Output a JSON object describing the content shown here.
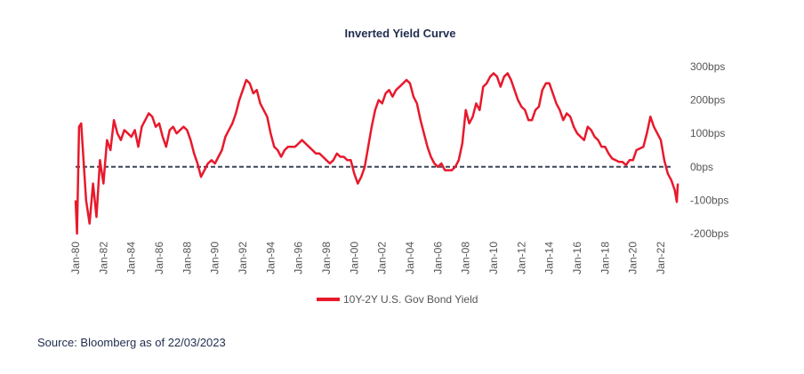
{
  "chart_data": {
    "type": "line",
    "title": "Inverted Yield Curve",
    "source": "Source: Bloomberg as of 22/03/2023",
    "ylim": [
      -200,
      300
    ],
    "yticks": [
      {
        "value": -200,
        "label": "-200bps"
      },
      {
        "value": -100,
        "label": "-100bps"
      },
      {
        "value": 0,
        "label": "0bps"
      },
      {
        "value": 100,
        "label": "100bps"
      },
      {
        "value": 200,
        "label": "200bps"
      },
      {
        "value": 300,
        "label": "300bps"
      }
    ],
    "xticks": [
      {
        "value": 1980,
        "label": "Jan-80"
      },
      {
        "value": 1982,
        "label": "Jan-82"
      },
      {
        "value": 1984,
        "label": "Jan-84"
      },
      {
        "value": 1986,
        "label": "Jan-86"
      },
      {
        "value": 1988,
        "label": "Jan-88"
      },
      {
        "value": 1990,
        "label": "Jan-90"
      },
      {
        "value": 1992,
        "label": "Jan-92"
      },
      {
        "value": 1994,
        "label": "Jan-94"
      },
      {
        "value": 1996,
        "label": "Jan-96"
      },
      {
        "value": 1998,
        "label": "Jan-98"
      },
      {
        "value": 2000,
        "label": "Jan-00"
      },
      {
        "value": 2002,
        "label": "Jan-02"
      },
      {
        "value": 2004,
        "label": "Jan-04"
      },
      {
        "value": 2006,
        "label": "Jan-06"
      },
      {
        "value": 2008,
        "label": "Jan-08"
      },
      {
        "value": 2010,
        "label": "Jan-10"
      },
      {
        "value": 2012,
        "label": "Jan-12"
      },
      {
        "value": 2014,
        "label": "Jan-14"
      },
      {
        "value": 2016,
        "label": "Jan-16"
      },
      {
        "value": 2018,
        "label": "Jan-18"
      },
      {
        "value": 2020,
        "label": "Jan-20"
      },
      {
        "value": 2022,
        "label": "Jan-22"
      }
    ],
    "x": [
      1980.0,
      1980.1,
      1980.25,
      1980.4,
      1980.6,
      1980.75,
      1981.0,
      1981.25,
      1981.5,
      1981.75,
      1982.0,
      1982.25,
      1982.5,
      1982.75,
      1983.0,
      1983.25,
      1983.5,
      1983.75,
      1984.0,
      1984.25,
      1984.5,
      1984.75,
      1985.0,
      1985.25,
      1985.5,
      1985.75,
      1986.0,
      1986.25,
      1986.5,
      1986.75,
      1987.0,
      1987.25,
      1987.5,
      1987.75,
      1988.0,
      1988.25,
      1988.5,
      1988.75,
      1989.0,
      1989.25,
      1989.5,
      1989.75,
      1990.0,
      1990.25,
      1990.5,
      1990.75,
      1991.0,
      1991.25,
      1991.5,
      1991.75,
      1992.0,
      1992.25,
      1992.5,
      1992.75,
      1993.0,
      1993.25,
      1993.5,
      1993.75,
      1994.0,
      1994.25,
      1994.5,
      1994.75,
      1995.0,
      1995.25,
      1995.5,
      1995.75,
      1996.0,
      1996.25,
      1996.5,
      1996.75,
      1997.0,
      1997.25,
      1997.5,
      1997.75,
      1998.0,
      1998.25,
      1998.5,
      1998.75,
      1999.0,
      1999.25,
      1999.5,
      1999.75,
      2000.0,
      2000.25,
      2000.5,
      2000.75,
      2001.0,
      2001.25,
      2001.5,
      2001.75,
      2002.0,
      2002.25,
      2002.5,
      2002.75,
      2003.0,
      2003.25,
      2003.5,
      2003.75,
      2004.0,
      2004.25,
      2004.5,
      2004.75,
      2005.0,
      2005.25,
      2005.5,
      2005.75,
      2006.0,
      2006.25,
      2006.5,
      2006.75,
      2007.0,
      2007.25,
      2007.5,
      2007.75,
      2008.0,
      2008.25,
      2008.5,
      2008.75,
      2009.0,
      2009.25,
      2009.5,
      2009.75,
      2010.0,
      2010.25,
      2010.5,
      2010.75,
      2011.0,
      2011.25,
      2011.5,
      2011.75,
      2012.0,
      2012.25,
      2012.5,
      2012.75,
      2013.0,
      2013.25,
      2013.5,
      2013.75,
      2014.0,
      2014.25,
      2014.5,
      2014.75,
      2015.0,
      2015.25,
      2015.5,
      2015.75,
      2016.0,
      2016.25,
      2016.5,
      2016.75,
      2017.0,
      2017.25,
      2017.5,
      2017.75,
      2018.0,
      2018.25,
      2018.5,
      2018.75,
      2019.0,
      2019.25,
      2019.5,
      2019.75,
      2020.0,
      2020.25,
      2020.5,
      2020.75,
      2021.0,
      2021.25,
      2021.5,
      2021.75,
      2022.0,
      2022.25,
      2022.5,
      2022.75,
      2023.0,
      2023.15,
      2023.22
    ],
    "series": [
      {
        "name": "10Y-2Y U.S. Gov Bond Yield",
        "color": "#e8192c",
        "values": [
          -100,
          -200,
          120,
          130,
          0,
          -100,
          -170,
          -50,
          -150,
          20,
          -50,
          80,
          50,
          140,
          100,
          80,
          110,
          100,
          90,
          110,
          60,
          120,
          140,
          160,
          150,
          120,
          130,
          90,
          60,
          110,
          120,
          100,
          110,
          120,
          110,
          80,
          40,
          10,
          -30,
          -10,
          10,
          20,
          10,
          30,
          50,
          90,
          110,
          130,
          160,
          200,
          230,
          260,
          250,
          220,
          230,
          190,
          170,
          150,
          100,
          60,
          50,
          30,
          50,
          60,
          60,
          60,
          70,
          80,
          70,
          60,
          50,
          40,
          40,
          30,
          20,
          10,
          20,
          40,
          30,
          30,
          20,
          20,
          -20,
          -50,
          -30,
          0,
          60,
          120,
          170,
          200,
          190,
          220,
          230,
          210,
          230,
          240,
          250,
          260,
          250,
          210,
          190,
          140,
          100,
          60,
          30,
          10,
          0,
          10,
          -10,
          -10,
          -10,
          0,
          20,
          70,
          170,
          130,
          150,
          190,
          170,
          240,
          250,
          270,
          280,
          270,
          240,
          270,
          280,
          260,
          230,
          200,
          180,
          170,
          140,
          140,
          170,
          180,
          230,
          250,
          250,
          220,
          190,
          170,
          140,
          160,
          150,
          120,
          100,
          90,
          80,
          120,
          110,
          90,
          80,
          60,
          60,
          40,
          25,
          20,
          15,
          15,
          5,
          20,
          20,
          50,
          55,
          60,
          100,
          150,
          120,
          100,
          80,
          20,
          -20,
          -40,
          -70,
          -105,
          -50
        ]
      }
    ]
  }
}
